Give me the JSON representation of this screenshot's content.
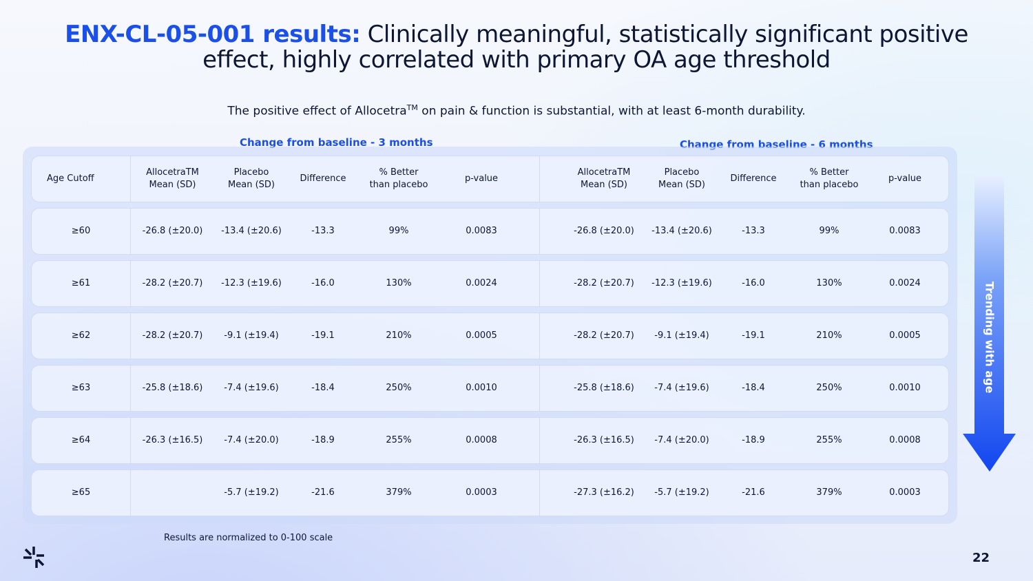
{
  "title": {
    "accent": "ENX-CL-05-001 results:",
    "rest": " Clinically meaningful, statistically significant positive",
    "line2": "effect, highly correlated with primary OA age threshold"
  },
  "subtitle": {
    "before": "The positive effect of Allocetra",
    "tm": "TM",
    "after": " on pain & function is substantial, with at least 6-month durability."
  },
  "section_3m": "Change from baseline - 3 months",
  "section_6m": "Change from baseline - 6 months",
  "headers": [
    "Age Cutoff",
    "AllocetraTM\nMean (SD)",
    "Placebo\nMean (SD)",
    "Difference",
    "% Better\nthan placebo",
    "p-value",
    "AllocetraTM\nMean (SD)",
    "Placebo\nMean (SD)",
    "Difference",
    "% Better\nthan placebo",
    "p-value"
  ],
  "rows": [
    [
      "≥60",
      "-26.8 (±20.0)",
      "-13.4 (±20.6)",
      "-13.3",
      "99%",
      "0.0083",
      "-26.8 (±20.0)",
      "-13.4 (±20.6)",
      "-13.3",
      "99%",
      "0.0083"
    ],
    [
      "≥61",
      "-28.2 (±20.7)",
      "-12.3 (±19.6)",
      "-16.0",
      "130%",
      "0.0024",
      "-28.2 (±20.7)",
      "-12.3 (±19.6)",
      "-16.0",
      "130%",
      "0.0024"
    ],
    [
      "≥62",
      "-28.2 (±20.7)",
      "-9.1 (±19.4)",
      "-19.1",
      "210%",
      "0.0005",
      "-28.2 (±20.7)",
      "-9.1 (±19.4)",
      "-19.1",
      "210%",
      "0.0005"
    ],
    [
      "≥63",
      "-25.8 (±18.6)",
      "-7.4 (±19.6)",
      "-18.4",
      "250%",
      "0.0010",
      "-25.8 (±18.6)",
      "-7.4 (±19.6)",
      "-18.4",
      "250%",
      "0.0010"
    ],
    [
      "≥64",
      "-26.3 (±16.5)",
      "-7.4 (±20.0)",
      "-18.9",
      "255%",
      "0.0008",
      "-26.3 (±16.5)",
      "-7.4 (±20.0)",
      "-18.9",
      "255%",
      "0.0008"
    ],
    [
      "≥65",
      "",
      "-5.7 (±19.2)",
      "-21.6",
      "379%",
      "0.0003",
      "-27.3 (±16.2)",
      "-5.7 (±19.2)",
      "-21.6",
      "379%",
      "0.0003"
    ]
  ],
  "note": "Results are normalized to 0-100 scale",
  "arrow_label": "Trending with age",
  "page_number": "22",
  "colors": {
    "accent": "#1a4fe8",
    "text": "#0d1633"
  }
}
